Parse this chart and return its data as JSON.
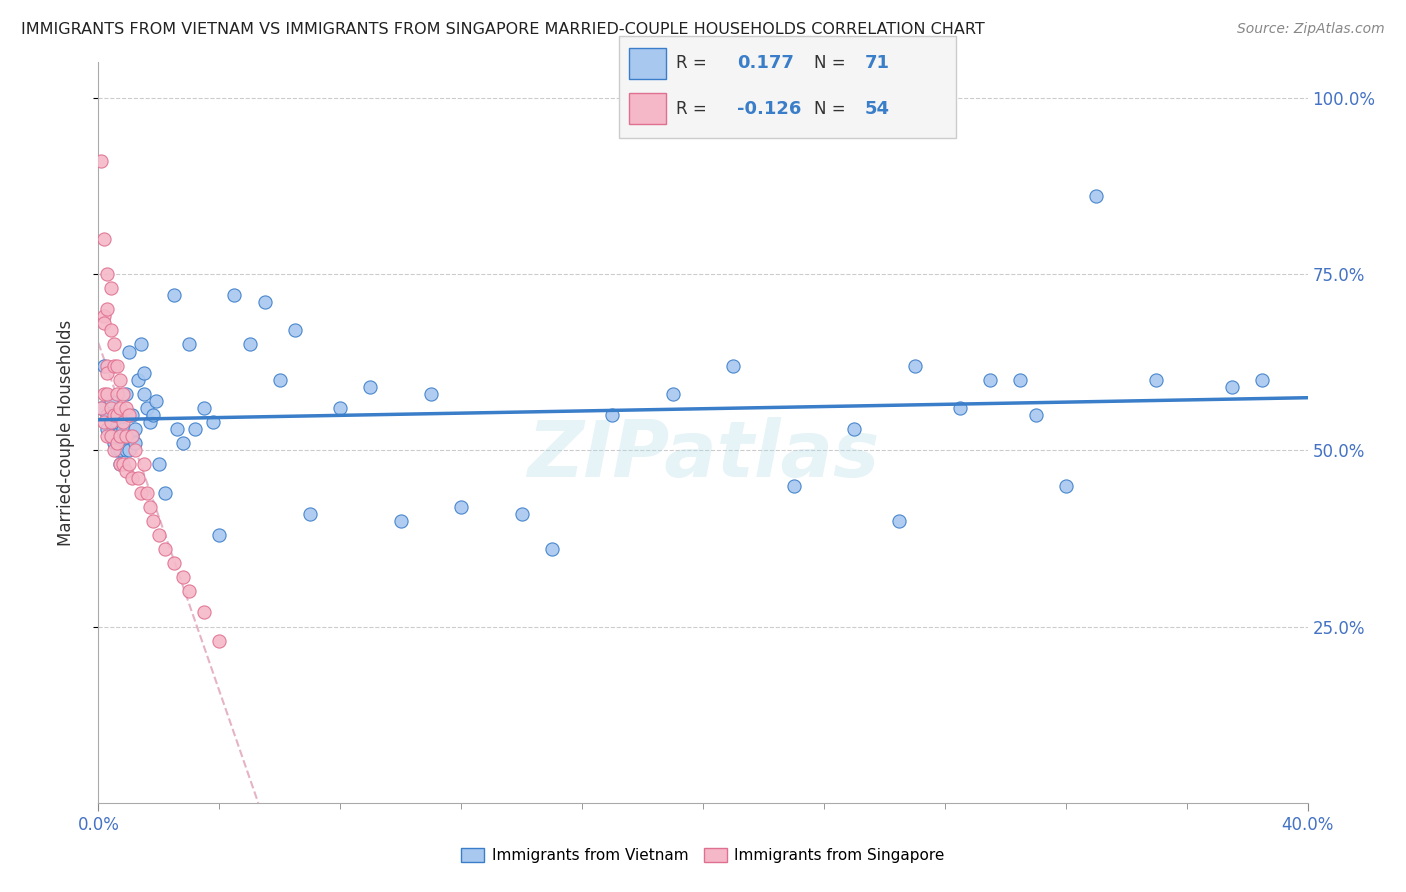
{
  "title": "IMMIGRANTS FROM VIETNAM VS IMMIGRANTS FROM SINGAPORE MARRIED-COUPLE HOUSEHOLDS CORRELATION CHART",
  "source": "Source: ZipAtlas.com",
  "ylabel": "Married-couple Households",
  "xlim": [
    0.0,
    0.4
  ],
  "ylim": [
    0.0,
    1.05
  ],
  "xtick_labels": [
    "0.0%",
    "40.0%"
  ],
  "xtick_values": [
    0.0,
    0.4
  ],
  "ytick_labels_right": [
    "25.0%",
    "50.0%",
    "75.0%",
    "100.0%"
  ],
  "ytick_values_right": [
    0.25,
    0.5,
    0.75,
    1.0
  ],
  "legend1_R": "0.177",
  "legend1_N": "71",
  "legend2_R": "-0.126",
  "legend2_N": "54",
  "color_vietnam": "#a8c8f0",
  "color_singapore": "#f5b8c8",
  "color_vietnam_line": "#3a7dc9",
  "color_singapore_line": "#d4a0b0",
  "watermark": "ZIPatlas",
  "vietnam_x": [
    0.001,
    0.002,
    0.003,
    0.003,
    0.004,
    0.004,
    0.005,
    0.005,
    0.006,
    0.006,
    0.006,
    0.007,
    0.007,
    0.007,
    0.008,
    0.008,
    0.009,
    0.009,
    0.01,
    0.01,
    0.011,
    0.011,
    0.012,
    0.012,
    0.013,
    0.014,
    0.015,
    0.015,
    0.016,
    0.017,
    0.018,
    0.019,
    0.02,
    0.022,
    0.025,
    0.026,
    0.028,
    0.03,
    0.032,
    0.035,
    0.038,
    0.04,
    0.045,
    0.05,
    0.055,
    0.06,
    0.065,
    0.07,
    0.08,
    0.09,
    0.1,
    0.11,
    0.12,
    0.14,
    0.15,
    0.17,
    0.19,
    0.21,
    0.23,
    0.25,
    0.265,
    0.27,
    0.285,
    0.295,
    0.305,
    0.31,
    0.32,
    0.33,
    0.35,
    0.375,
    0.385
  ],
  "vietnam_y": [
    0.56,
    0.62,
    0.53,
    0.55,
    0.52,
    0.57,
    0.54,
    0.51,
    0.54,
    0.51,
    0.5,
    0.5,
    0.52,
    0.48,
    0.53,
    0.51,
    0.5,
    0.58,
    0.64,
    0.5,
    0.52,
    0.55,
    0.53,
    0.51,
    0.6,
    0.65,
    0.58,
    0.61,
    0.56,
    0.54,
    0.55,
    0.57,
    0.48,
    0.44,
    0.72,
    0.53,
    0.51,
    0.65,
    0.53,
    0.56,
    0.54,
    0.38,
    0.72,
    0.65,
    0.71,
    0.6,
    0.67,
    0.41,
    0.56,
    0.59,
    0.4,
    0.58,
    0.42,
    0.41,
    0.36,
    0.55,
    0.58,
    0.62,
    0.45,
    0.53,
    0.4,
    0.62,
    0.56,
    0.6,
    0.6,
    0.55,
    0.45,
    0.86,
    0.6,
    0.59,
    0.6
  ],
  "singapore_x": [
    0.001,
    0.001,
    0.002,
    0.002,
    0.002,
    0.002,
    0.002,
    0.003,
    0.003,
    0.003,
    0.003,
    0.003,
    0.003,
    0.004,
    0.004,
    0.004,
    0.004,
    0.004,
    0.005,
    0.005,
    0.005,
    0.005,
    0.006,
    0.006,
    0.006,
    0.006,
    0.007,
    0.007,
    0.007,
    0.007,
    0.008,
    0.008,
    0.008,
    0.009,
    0.009,
    0.009,
    0.01,
    0.01,
    0.011,
    0.011,
    0.012,
    0.013,
    0.014,
    0.015,
    0.016,
    0.017,
    0.018,
    0.02,
    0.022,
    0.025,
    0.028,
    0.03,
    0.035,
    0.04
  ],
  "singapore_y": [
    0.91,
    0.56,
    0.8,
    0.69,
    0.68,
    0.58,
    0.54,
    0.75,
    0.7,
    0.62,
    0.61,
    0.58,
    0.52,
    0.73,
    0.67,
    0.56,
    0.54,
    0.52,
    0.65,
    0.62,
    0.55,
    0.5,
    0.62,
    0.58,
    0.55,
    0.51,
    0.6,
    0.56,
    0.52,
    0.48,
    0.58,
    0.54,
    0.48,
    0.56,
    0.52,
    0.47,
    0.55,
    0.48,
    0.52,
    0.46,
    0.5,
    0.46,
    0.44,
    0.48,
    0.44,
    0.42,
    0.4,
    0.38,
    0.36,
    0.34,
    0.32,
    0.3,
    0.27,
    0.23
  ]
}
